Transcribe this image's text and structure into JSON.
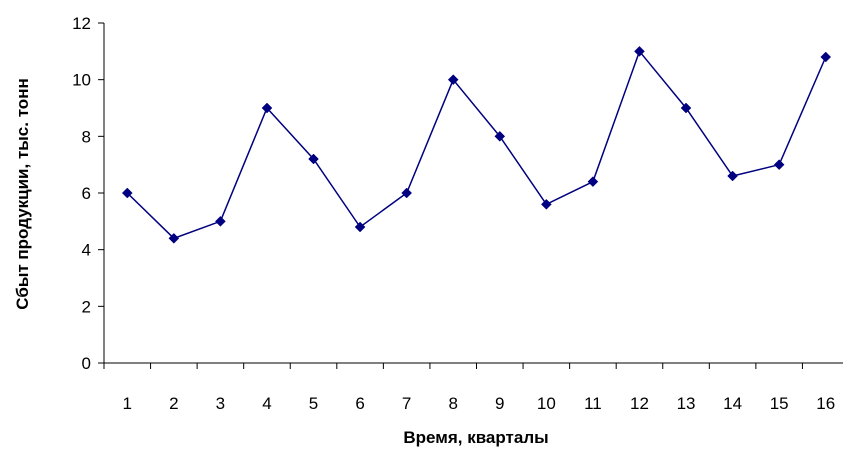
{
  "chart_data": {
    "type": "line",
    "title": "",
    "xlabel": "Время, кварталы",
    "ylabel": "Сбыт продукции, тыс. тонн",
    "x": [
      1,
      2,
      3,
      4,
      5,
      6,
      7,
      8,
      9,
      10,
      11,
      12,
      13,
      14,
      15,
      16
    ],
    "series": [
      {
        "values": [
          6,
          4.4,
          5,
          9,
          7.2,
          4.8,
          6,
          10,
          8,
          5.6,
          6.4,
          11,
          9,
          6.6,
          7,
          10.8
        ],
        "color": "#000080",
        "marker": "diamond"
      }
    ],
    "ylim": [
      0,
      12
    ],
    "yticks": [
      0,
      2,
      4,
      6,
      8,
      10,
      12
    ],
    "grid": false,
    "legend": "none"
  }
}
